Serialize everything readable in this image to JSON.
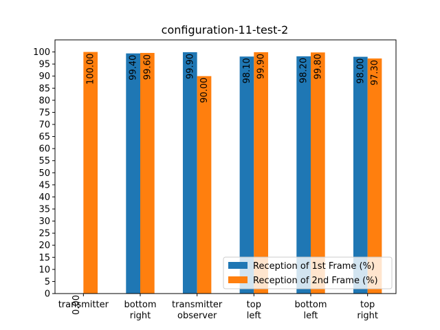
{
  "chart_data": {
    "type": "bar",
    "title": "configuration-11-test-2",
    "xlabel": "",
    "ylabel": "",
    "ylim": [
      0,
      105
    ],
    "yticks": [
      0,
      5,
      10,
      15,
      20,
      25,
      30,
      35,
      40,
      45,
      50,
      55,
      60,
      65,
      70,
      75,
      80,
      85,
      90,
      95,
      100
    ],
    "categories": [
      [
        "transmitter"
      ],
      [
        "bottom",
        "right"
      ],
      [
        "transmitter",
        "observer"
      ],
      [
        "top",
        "left"
      ],
      [
        "bottom",
        "left"
      ],
      [
        "top",
        "right"
      ]
    ],
    "series": [
      {
        "name": "Reception of 1st Frame (%)",
        "color": "#1f77b4",
        "values": [
          0.0,
          99.4,
          99.9,
          98.1,
          98.2,
          98.0
        ],
        "labels": [
          "0.00",
          "99.40",
          "99.90",
          "98.10",
          "98.20",
          "98.00"
        ]
      },
      {
        "name": "Reception of 2nd Frame (%)",
        "color": "#ff7f0e",
        "values": [
          100.0,
          99.6,
          90.0,
          99.9,
          99.8,
          97.3
        ],
        "labels": [
          "100.00",
          "99.60",
          "90.00",
          "99.90",
          "99.80",
          "97.30"
        ]
      }
    ],
    "legend_position": "lower-right"
  }
}
